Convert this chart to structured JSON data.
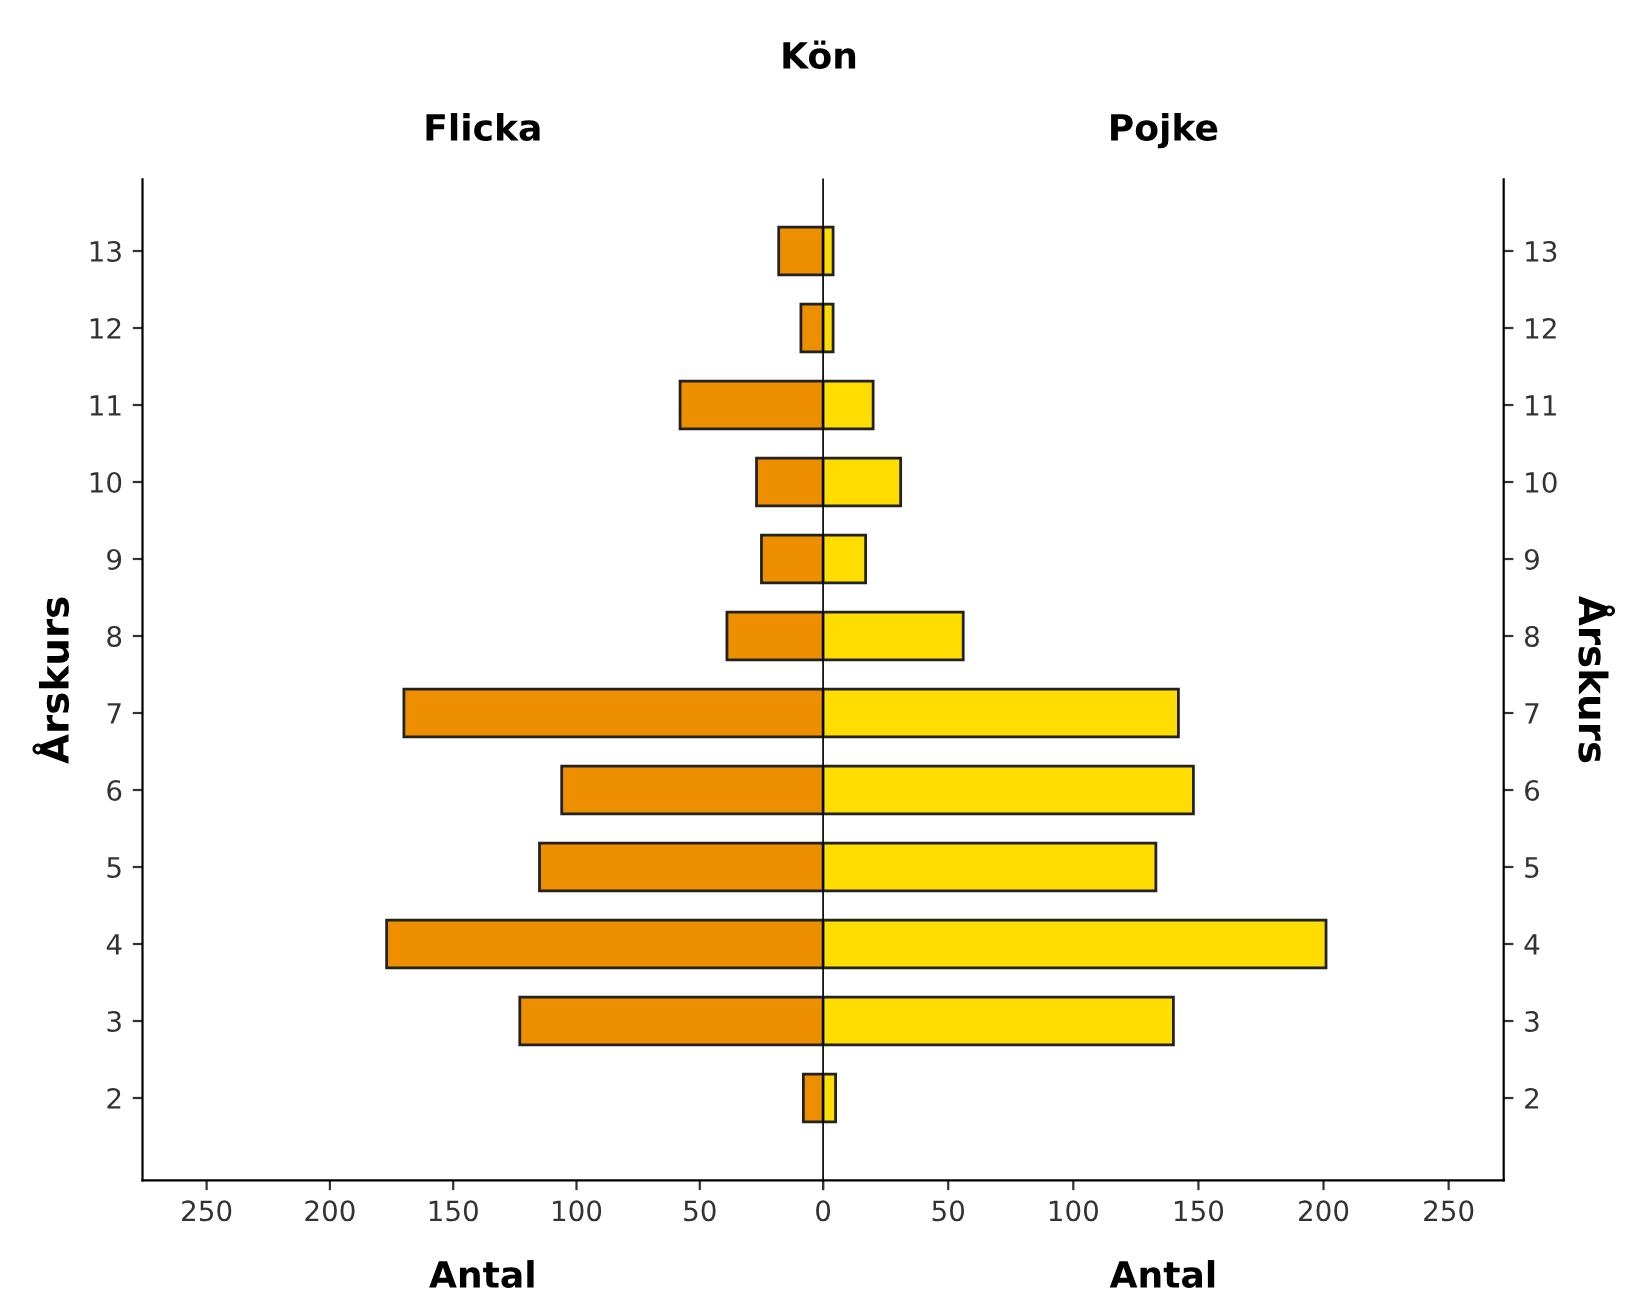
{
  "chart_data": [
    {
      "type": "bar",
      "orientation": "horizontal",
      "title": "Flicka",
      "xlabel": "Antal",
      "ylabel": "Årskurs",
      "annotations": [
        "Kön"
      ],
      "categories": [
        "13",
        "12",
        "11",
        "10",
        "9",
        "8",
        "7",
        "6",
        "5",
        "4",
        "3",
        "2"
      ],
      "series": [
        {
          "color": "#ee8f00",
          "values": [
            18,
            9,
            58,
            27,
            25,
            39,
            170,
            106,
            115,
            177,
            123,
            8
          ]
        }
      ],
      "xlim": [
        276,
        0
      ],
      "xticks": [
        250,
        200,
        150,
        100,
        50,
        {
          "value": 0,
          "label": null
        }
      ],
      "grid": false,
      "legend": false
    },
    {
      "type": "bar",
      "orientation": "horizontal",
      "title": "Pojke",
      "xlabel": "Antal",
      "y2label": "Årskurs",
      "categories": [
        "13",
        "12",
        "11",
        "10",
        "9",
        "8",
        "7",
        "6",
        "5",
        "4",
        "3",
        "2"
      ],
      "series": [
        {
          "color": "#ffdd00",
          "values": [
            4,
            4,
            20,
            31,
            17,
            56,
            142,
            148,
            133,
            201,
            140,
            5
          ]
        }
      ],
      "xlim": [
        0,
        272
      ],
      "xticks": [
        0,
        50,
        100,
        150,
        200,
        250
      ],
      "grid": false,
      "legend": false
    }
  ]
}
